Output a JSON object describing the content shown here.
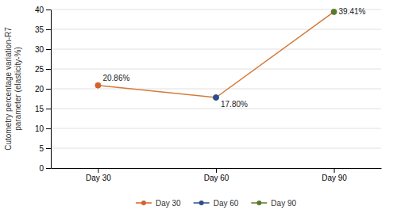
{
  "chart_data": {
    "type": "line",
    "categories": [
      "Day 30",
      "Day 60",
      "Day 90"
    ],
    "values": [
      20.86,
      17.8,
      39.41
    ],
    "value_labels": [
      "20.86%",
      "17.80%",
      "39.41%"
    ],
    "data_labels": true,
    "color": "#D47A3A",
    "colors": [
      "#D4622A",
      "#2E4D8A",
      "#5A7A2A"
    ],
    "marker": "circle",
    "ylabel": "Cutometry percentage variation-R7\nparameter (elasticity-%)",
    "ylim": [
      0,
      40
    ],
    "yticks": [
      0,
      5,
      10,
      15,
      20,
      25,
      30,
      35,
      40
    ],
    "grid": true,
    "legend": "bottom"
  }
}
